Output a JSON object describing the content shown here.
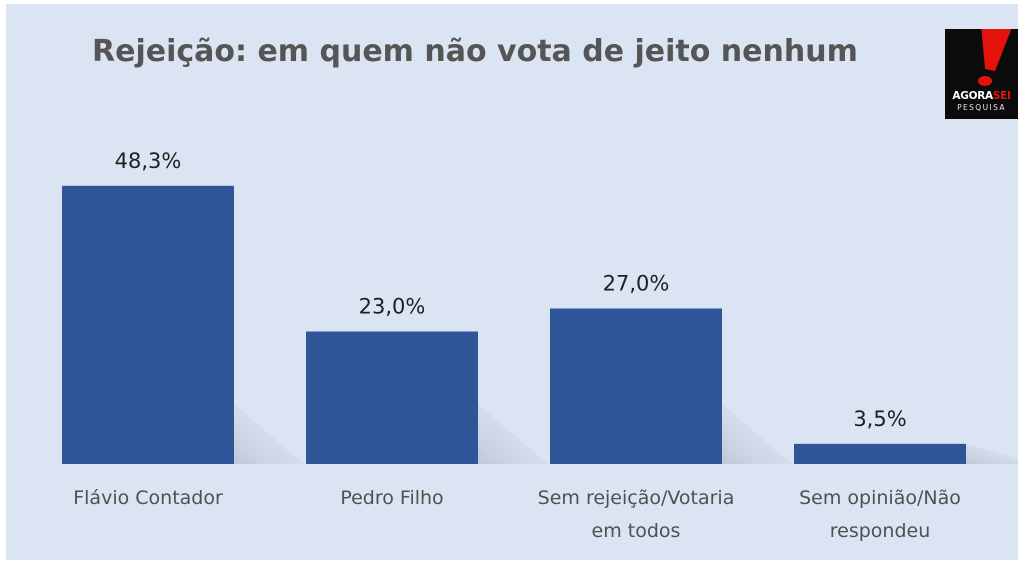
{
  "chart_data": {
    "type": "bar",
    "title": "Rejeição: em quem não vota de jeito nenhum",
    "categories": [
      [
        "Flávio Contador"
      ],
      [
        "Pedro Filho"
      ],
      [
        "Sem rejeição/Votaria",
        "em todos"
      ],
      [
        "Sem opinião/Não",
        "respondeu"
      ]
    ],
    "values": [
      48.3,
      23.0,
      27.0,
      3.5
    ],
    "data_labels": [
      "48,3%",
      "23,0%",
      "27,0%",
      "3,5%"
    ],
    "xlabel": "",
    "ylabel": "",
    "ylim": [
      0,
      50
    ],
    "grid": false,
    "legend": "none",
    "bar_color": "#2e5597"
  },
  "logo": {
    "brand_left": "AGORA",
    "brand_right": "SEI",
    "subtitle": "PESQUISA",
    "bg_color": "#0b0b0b",
    "accent_color": "#e3120b"
  },
  "background_color": "#dbe4f3"
}
